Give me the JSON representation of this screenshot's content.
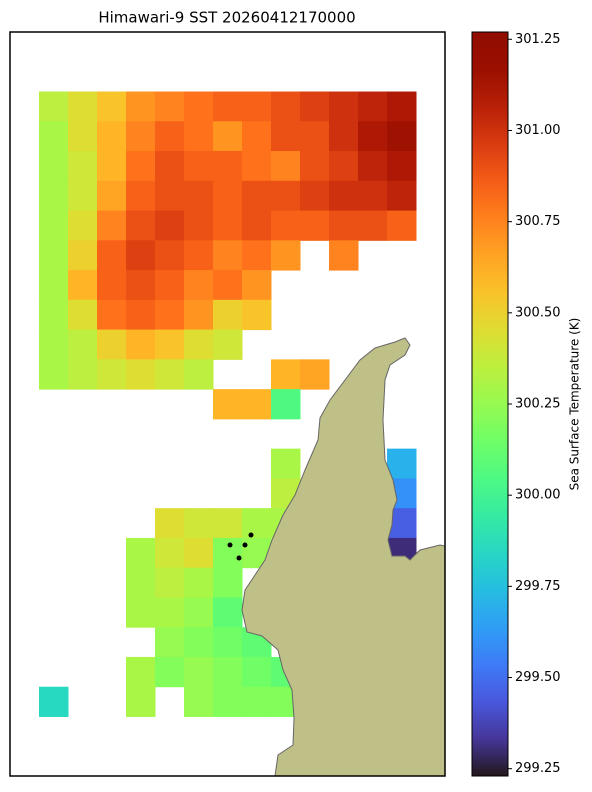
{
  "chart_data": {
    "type": "heatmap",
    "title": "Himawari-9 SST 20260412170000",
    "colorbar_label": "Sea Surface Temperature (K)",
    "colormap": "turbo",
    "ylim": [
      299.23,
      301.27
    ],
    "yticks": [
      299.25,
      {
        "value": 299.5,
        "label": "299.50"
      },
      299.75,
      {
        "value": 300,
        "label": "300.00"
      },
      300.25,
      {
        "value": 300.5,
        "label": "300.50"
      },
      300.75,
      {
        "value": 301,
        "label": "301.00"
      },
      301.25
    ],
    "sst": [
      [
        null,
        null,
        null,
        null,
        null,
        null,
        null,
        null,
        null,
        null,
        null,
        null,
        null,
        null,
        null
      ],
      [
        null,
        null,
        null,
        null,
        null,
        null,
        null,
        null,
        null,
        null,
        null,
        null,
        null,
        null,
        null
      ],
      [
        null,
        300.35,
        300.45,
        300.55,
        300.7,
        300.75,
        300.8,
        300.85,
        300.85,
        300.9,
        300.95,
        301.0,
        301.05,
        301.1,
        null
      ],
      [
        null,
        300.3,
        300.45,
        300.6,
        300.75,
        300.85,
        300.8,
        300.7,
        300.8,
        300.9,
        300.9,
        301.0,
        301.1,
        301.15,
        null
      ],
      [
        null,
        300.3,
        300.4,
        300.6,
        300.8,
        300.9,
        300.85,
        300.85,
        300.8,
        300.75,
        300.9,
        300.95,
        301.05,
        301.1,
        null
      ],
      [
        null,
        300.3,
        300.4,
        300.65,
        300.85,
        300.9,
        300.9,
        300.85,
        300.9,
        300.9,
        300.95,
        301.0,
        301.0,
        301.05,
        null
      ],
      [
        null,
        300.3,
        300.45,
        300.75,
        300.9,
        300.95,
        300.9,
        300.85,
        300.9,
        300.85,
        300.85,
        300.9,
        300.9,
        300.85,
        null
      ],
      [
        null,
        300.3,
        300.5,
        300.85,
        300.95,
        300.9,
        300.85,
        300.75,
        300.8,
        300.7,
        null,
        300.75,
        null,
        null,
        null
      ],
      [
        null,
        300.3,
        300.6,
        300.85,
        300.9,
        300.85,
        300.75,
        300.8,
        300.7,
        null,
        null,
        null,
        null,
        null,
        null
      ],
      [
        null,
        300.3,
        300.45,
        300.8,
        300.85,
        300.8,
        300.7,
        300.5,
        300.55,
        null,
        null,
        null,
        null,
        null,
        null
      ],
      [
        null,
        300.3,
        300.35,
        300.5,
        300.6,
        300.55,
        300.45,
        300.4,
        null,
        null,
        null,
        null,
        null,
        null,
        null
      ],
      [
        null,
        300.3,
        300.35,
        300.4,
        300.45,
        300.4,
        300.35,
        null,
        null,
        300.6,
        300.65,
        null,
        null,
        null,
        null
      ],
      [
        null,
        null,
        null,
        null,
        null,
        null,
        null,
        300.6,
        300.6,
        300.05,
        null,
        null,
        null,
        null,
        null
      ],
      [
        null,
        null,
        null,
        null,
        null,
        null,
        null,
        null,
        null,
        null,
        null,
        null,
        null,
        null,
        null
      ],
      [
        null,
        null,
        null,
        null,
        null,
        null,
        null,
        null,
        null,
        300.3,
        null,
        null,
        null,
        299.7,
        null
      ],
      [
        null,
        null,
        null,
        null,
        null,
        null,
        null,
        null,
        null,
        300.35,
        null,
        null,
        null,
        299.6,
        null
      ],
      [
        null,
        null,
        null,
        null,
        null,
        300.45,
        300.4,
        300.4,
        300.3,
        300.3,
        null,
        null,
        null,
        299.45,
        null
      ],
      [
        null,
        null,
        null,
        null,
        300.3,
        300.4,
        300.45,
        300.2,
        300.25,
        null,
        null,
        null,
        null,
        299.3,
        null
      ],
      [
        null,
        null,
        null,
        null,
        300.3,
        300.35,
        300.3,
        300.2,
        null,
        null,
        null,
        null,
        null,
        null,
        null
      ],
      [
        null,
        null,
        null,
        null,
        300.3,
        300.3,
        300.25,
        300.1,
        null,
        null,
        null,
        null,
        null,
        null,
        null
      ],
      [
        null,
        null,
        null,
        null,
        null,
        300.25,
        300.2,
        300.15,
        300.1,
        null,
        null,
        null,
        null,
        null,
        null
      ],
      [
        null,
        null,
        null,
        null,
        300.3,
        300.2,
        300.25,
        300.2,
        300.15,
        300.1,
        null,
        null,
        null,
        null,
        null
      ],
      [
        null,
        299.85,
        null,
        null,
        300.3,
        null,
        300.25,
        300.2,
        300.2,
        300.2,
        null,
        null,
        null,
        null,
        null
      ],
      [
        null,
        null,
        null,
        null,
        null,
        null,
        null,
        null,
        null,
        null,
        null,
        null,
        null,
        null,
        null
      ],
      [
        null,
        null,
        null,
        null,
        null,
        null,
        null,
        null,
        null,
        null,
        null,
        null,
        null,
        null,
        null
      ]
    ]
  }
}
